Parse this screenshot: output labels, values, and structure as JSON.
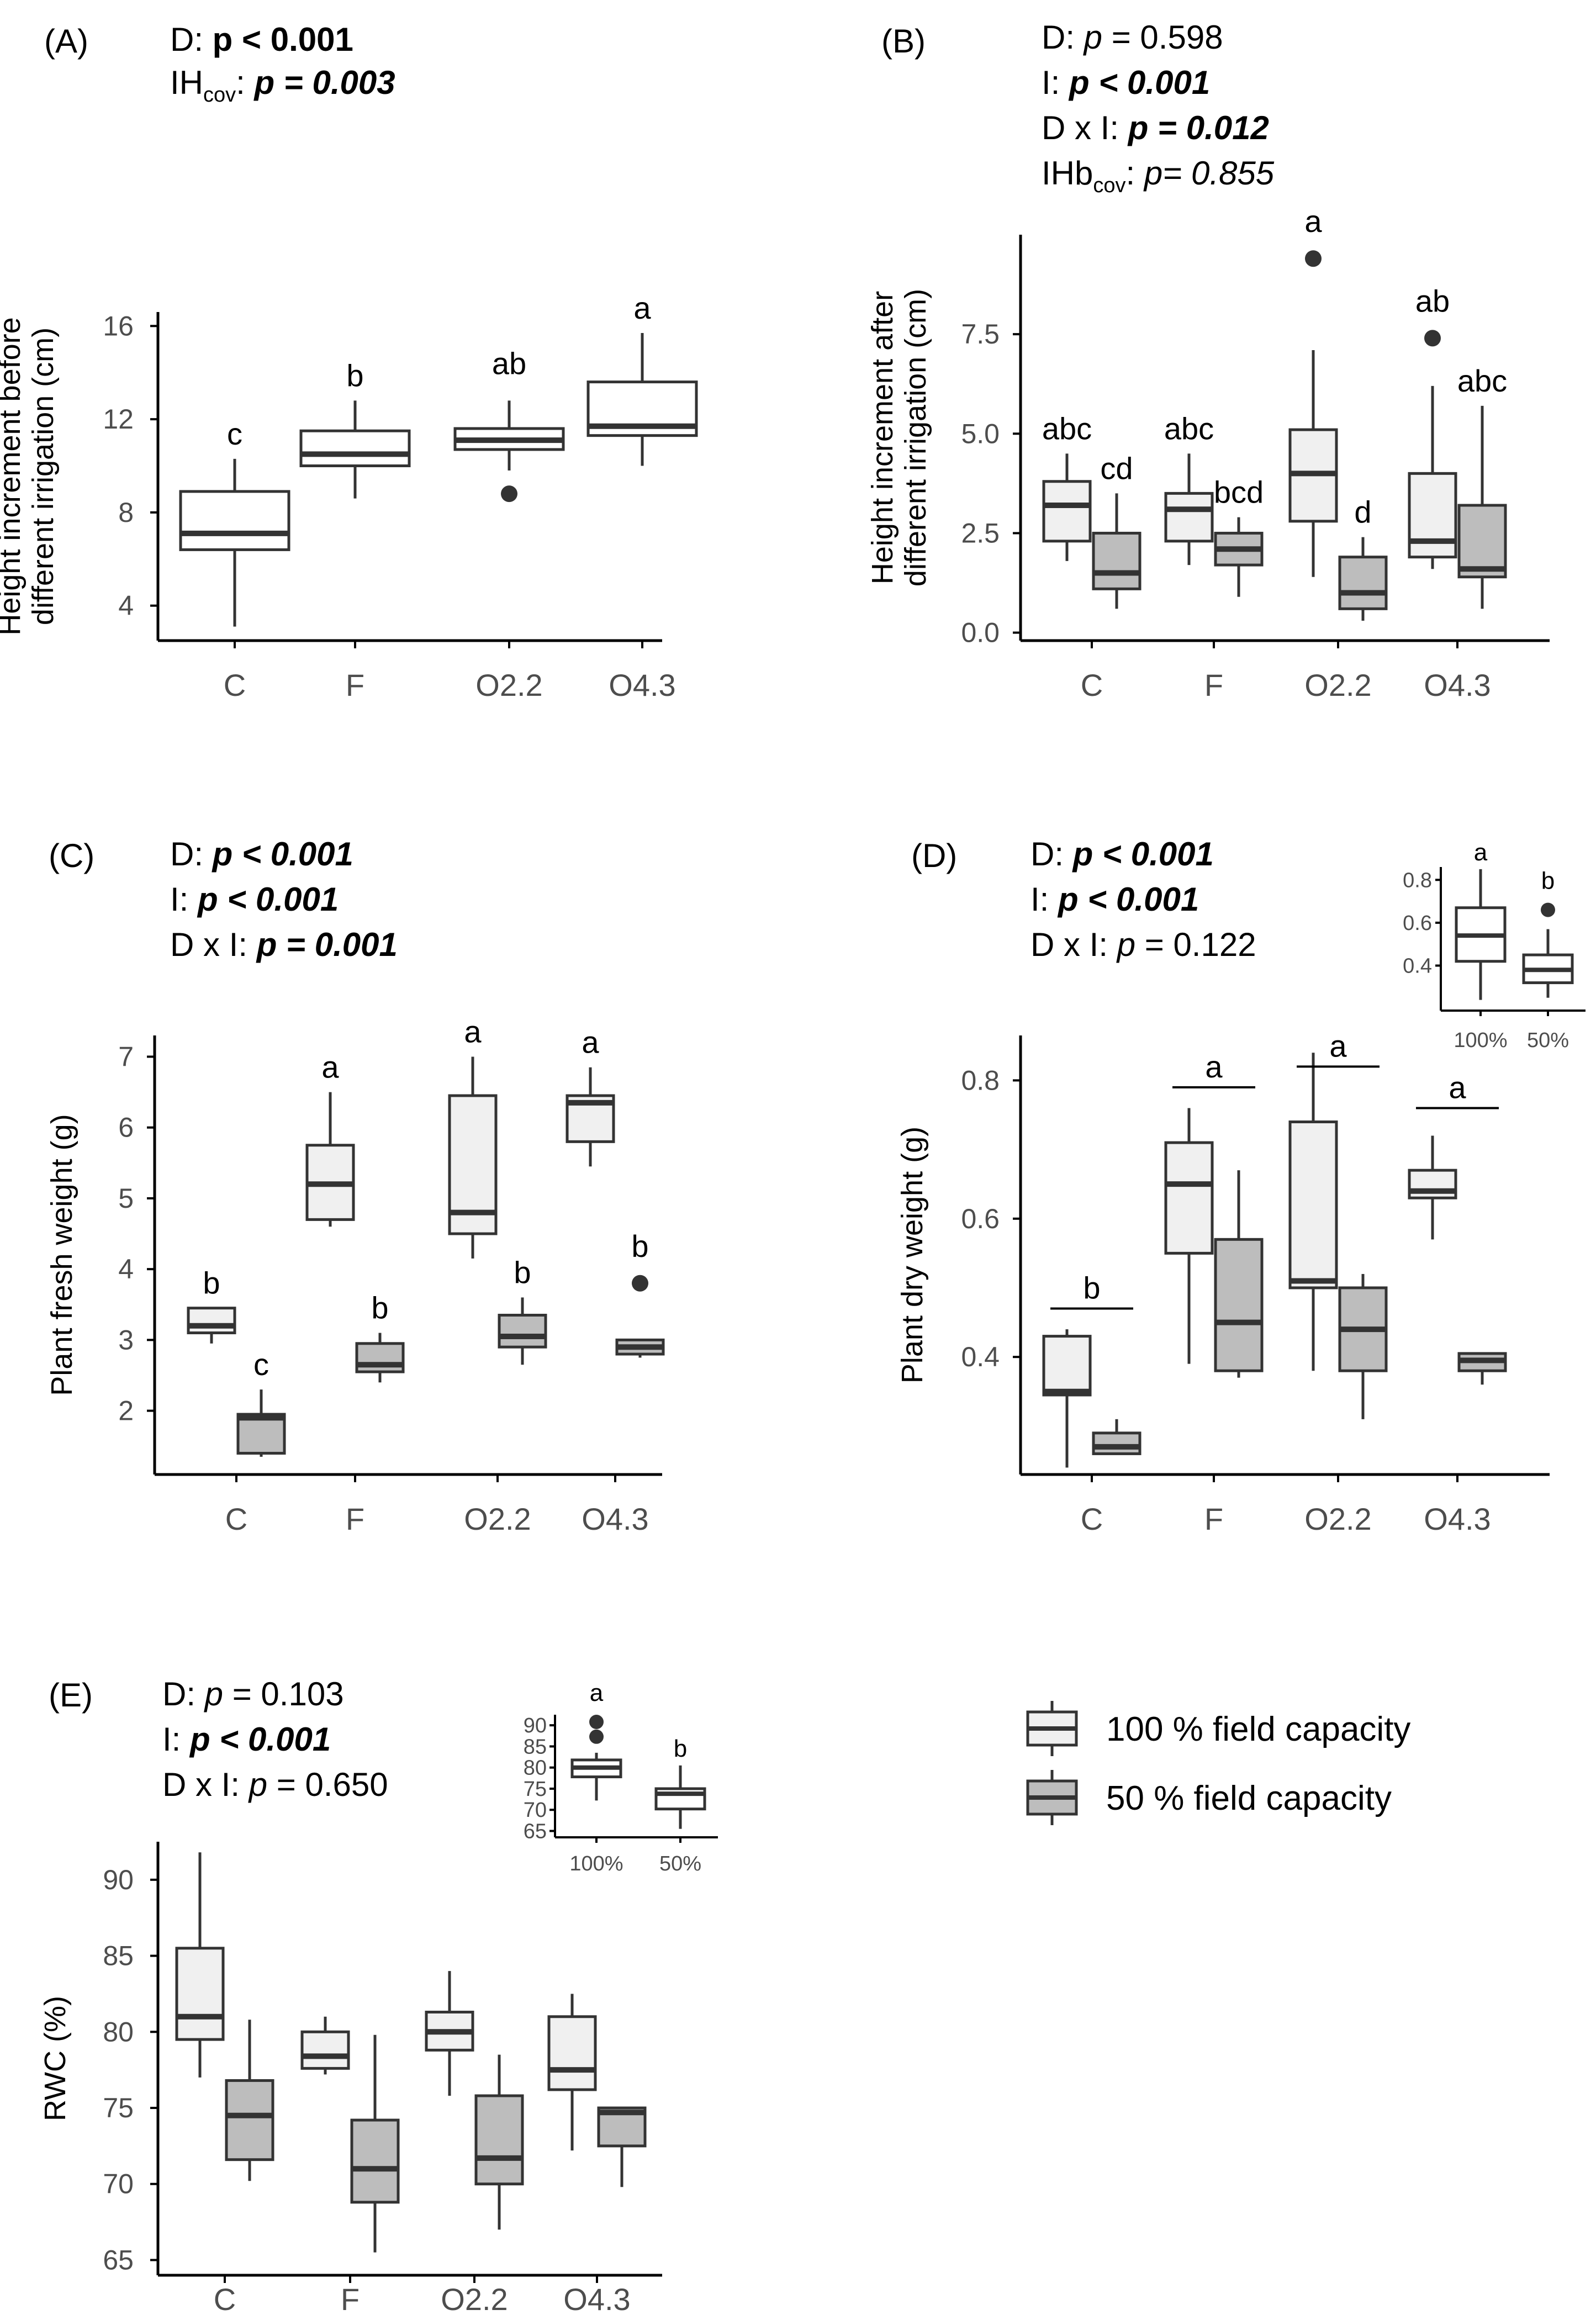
{
  "colors": {
    "fc100": "#f0f0f0",
    "fc50": "#bdbdbd",
    "white": "#ffffff",
    "stroke": "#333333",
    "axis": "#000000"
  },
  "legend": {
    "items": [
      {
        "label": "100 % field capacity",
        "color": "#f0f0f0"
      },
      {
        "label": "50 % field capacity",
        "color": "#bdbdbd"
      }
    ]
  },
  "chart_data": [
    {
      "id": "A",
      "type": "boxplot",
      "panel_label": "(A)",
      "stats": [
        [
          {
            "t": "D: ",
            "b": false,
            "i": false
          },
          {
            "t": "p < 0.001",
            "b": true,
            "i": false
          }
        ],
        [
          {
            "t": "IH",
            "b": false,
            "i": false
          },
          {
            "t": "cov",
            "b": false,
            "i": false,
            "sub": true
          },
          {
            "t": ": ",
            "b": false,
            "i": false
          },
          {
            "t": "p = 0.003",
            "b": true,
            "i": true
          }
        ]
      ],
      "ylabel": [
        "Height increment before",
        "different irrigation (cm)"
      ],
      "ylim": [
        2.5,
        16.6
      ],
      "yticks": [
        {
          "v": 4,
          "label": "4"
        },
        {
          "v": 8,
          "label": "8"
        },
        {
          "v": 12,
          "label": "12"
        },
        {
          "v": 16,
          "label": "16"
        }
      ],
      "categories": [
        "C",
        "F",
        "O2.2",
        "O4.3"
      ],
      "boxes": [
        {
          "cat": 0,
          "fill": "white",
          "min": 3.1,
          "q1": 6.4,
          "median": 7.1,
          "q3": 8.9,
          "max": 10.3,
          "outliers": [],
          "letter": "c"
        },
        {
          "cat": 1,
          "fill": "white",
          "min": 8.6,
          "q1": 10.0,
          "median": 10.5,
          "q3": 11.5,
          "max": 12.8,
          "outliers": [],
          "letter": "b"
        },
        {
          "cat": 2,
          "fill": "white",
          "min": 9.8,
          "q1": 10.7,
          "median": 11.1,
          "q3": 11.6,
          "max": 12.8,
          "outliers": [
            8.8
          ],
          "letter": "ab"
        },
        {
          "cat": 3,
          "fill": "white",
          "min": 10.0,
          "q1": 11.3,
          "median": 11.7,
          "q3": 13.6,
          "max": 15.7,
          "outliers": [],
          "letter": "a"
        }
      ]
    },
    {
      "id": "B",
      "type": "boxplot",
      "panel_label": "(B)",
      "stats": [
        [
          {
            "t": "D: ",
            "b": false,
            "i": false
          },
          {
            "t": "p",
            "b": false,
            "i": true
          },
          {
            "t": " = 0.598",
            "b": false,
            "i": false
          }
        ],
        [
          {
            "t": "I: ",
            "b": false,
            "i": false
          },
          {
            "t": "p < 0.001",
            "b": true,
            "i": true
          }
        ],
        [
          {
            "t": "D x I: ",
            "b": false,
            "i": false
          },
          {
            "t": "p = 0.012",
            "b": true,
            "i": true
          }
        ],
        [
          {
            "t": "IHb",
            "b": false,
            "i": false
          },
          {
            "t": "cov",
            "b": false,
            "i": false,
            "sub": true
          },
          {
            "t": ": ",
            "b": false,
            "i": false
          },
          {
            "t": "p= 0.855",
            "b": false,
            "i": true
          }
        ]
      ],
      "ylabel": [
        "Height increment after",
        "different irrigation (cm)"
      ],
      "ylim": [
        -0.2,
        10.0
      ],
      "yticks": [
        {
          "v": 0,
          "label": "0.0"
        },
        {
          "v": 2.5,
          "label": "2.5"
        },
        {
          "v": 5,
          "label": "5.0"
        },
        {
          "v": 7.5,
          "label": "7.5"
        }
      ],
      "categories": [
        "C",
        "F",
        "O2.2",
        "O4.3"
      ],
      "boxes": [
        {
          "cat": 0,
          "off": -1,
          "fill": "fc100",
          "min": 1.8,
          "q1": 2.3,
          "median": 3.2,
          "q3": 3.8,
          "max": 4.5,
          "outliers": [],
          "letter": "abc"
        },
        {
          "cat": 0,
          "off": 1,
          "fill": "fc50",
          "min": 0.6,
          "q1": 1.1,
          "median": 1.5,
          "q3": 2.5,
          "max": 3.5,
          "outliers": [],
          "letter": "cd"
        },
        {
          "cat": 1,
          "off": -1,
          "fill": "fc100",
          "min": 1.7,
          "q1": 2.3,
          "median": 3.1,
          "q3": 3.5,
          "max": 4.5,
          "outliers": [],
          "letter": "abc"
        },
        {
          "cat": 1,
          "off": 1,
          "fill": "fc50",
          "min": 0.9,
          "q1": 1.7,
          "median": 2.1,
          "q3": 2.5,
          "max": 2.9,
          "outliers": [],
          "letter": "bcd"
        },
        {
          "cat": 2,
          "off": -1,
          "fill": "fc100",
          "min": 1.4,
          "q1": 2.8,
          "median": 4.0,
          "q3": 5.1,
          "max": 7.1,
          "outliers": [
            9.4
          ],
          "letter": "a"
        },
        {
          "cat": 2,
          "off": 1,
          "fill": "fc50",
          "min": 0.3,
          "q1": 0.6,
          "median": 1.0,
          "q3": 1.9,
          "max": 2.4,
          "outliers": [],
          "letter": "d"
        },
        {
          "cat": 3,
          "off": -1,
          "fill": "fc100",
          "min": 1.6,
          "q1": 1.9,
          "median": 2.3,
          "q3": 4.0,
          "max": 6.2,
          "outliers": [
            7.4
          ],
          "letter": "ab"
        },
        {
          "cat": 3,
          "off": 1,
          "fill": "fc50",
          "min": 0.6,
          "q1": 1.4,
          "median": 1.6,
          "q3": 3.2,
          "max": 5.7,
          "outliers": [],
          "letter": "abc"
        }
      ]
    },
    {
      "id": "C",
      "type": "boxplot",
      "panel_label": "(C)",
      "stats": [
        [
          {
            "t": "D: ",
            "b": false,
            "i": false
          },
          {
            "t": "p < 0.001",
            "b": true,
            "i": true
          }
        ],
        [
          {
            "t": "I: ",
            "b": false,
            "i": false
          },
          {
            "t": "p < 0.001",
            "b": true,
            "i": true
          }
        ],
        [
          {
            "t": "D x I: ",
            "b": false,
            "i": false
          },
          {
            "t": "p = 0.001",
            "b": true,
            "i": true
          }
        ]
      ],
      "ylabel": [
        "Plant fresh weight (g)"
      ],
      "ylim": [
        1.1,
        7.3
      ],
      "yticks": [
        {
          "v": 2,
          "label": "2"
        },
        {
          "v": 3,
          "label": "3"
        },
        {
          "v": 4,
          "label": "4"
        },
        {
          "v": 5,
          "label": "5"
        },
        {
          "v": 6,
          "label": "6"
        },
        {
          "v": 7,
          "label": "7"
        }
      ],
      "categories": [
        "C",
        "F",
        "O2.2",
        "O4.3"
      ],
      "boxes": [
        {
          "cat": 0,
          "off": -1,
          "fill": "fc100",
          "min": 2.95,
          "q1": 3.1,
          "median": 3.2,
          "q3": 3.45,
          "max": 3.45,
          "outliers": [],
          "letter": "b"
        },
        {
          "cat": 0,
          "off": 1,
          "fill": "fc50",
          "min": 1.35,
          "q1": 1.4,
          "median": 1.9,
          "q3": 1.95,
          "max": 2.3,
          "outliers": [],
          "letter": "c"
        },
        {
          "cat": 1,
          "off": -1,
          "fill": "fc100",
          "min": 4.6,
          "q1": 4.7,
          "median": 5.2,
          "q3": 5.75,
          "max": 6.5,
          "outliers": [],
          "letter": "a"
        },
        {
          "cat": 1,
          "off": 1,
          "fill": "fc50",
          "min": 2.4,
          "q1": 2.55,
          "median": 2.65,
          "q3": 2.95,
          "max": 3.1,
          "outliers": [],
          "letter": "b"
        },
        {
          "cat": 2,
          "off": -1,
          "fill": "fc100",
          "min": 4.15,
          "q1": 4.5,
          "median": 4.8,
          "q3": 6.45,
          "max": 7.0,
          "outliers": [],
          "letter": "a"
        },
        {
          "cat": 2,
          "off": 1,
          "fill": "fc50",
          "min": 2.65,
          "q1": 2.9,
          "median": 3.05,
          "q3": 3.35,
          "max": 3.6,
          "outliers": [],
          "letter": "b"
        },
        {
          "cat": 3,
          "off": -1,
          "fill": "fc100",
          "min": 5.45,
          "q1": 5.8,
          "median": 6.35,
          "q3": 6.45,
          "max": 6.85,
          "outliers": [],
          "letter": "a"
        },
        {
          "cat": 3,
          "off": 1,
          "fill": "fc50",
          "min": 2.75,
          "q1": 2.8,
          "median": 2.9,
          "q3": 3.0,
          "max": 3.0,
          "outliers": [
            3.8
          ],
          "letter": "b"
        }
      ]
    },
    {
      "id": "D",
      "type": "boxplot",
      "panel_label": "(D)",
      "stats": [
        [
          {
            "t": "D: ",
            "b": false,
            "i": false
          },
          {
            "t": "p < 0.001",
            "b": true,
            "i": true
          }
        ],
        [
          {
            "t": "I: ",
            "b": false,
            "i": false
          },
          {
            "t": "p < 0.001",
            "b": true,
            "i": true
          }
        ],
        [
          {
            "t": "D x I: ",
            "b": false,
            "i": false
          },
          {
            "t": "p",
            "b": false,
            "i": true
          },
          {
            "t": " = 0.122",
            "b": false,
            "i": false
          }
        ]
      ],
      "ylabel": [
        "Plant dry weight (g)"
      ],
      "ylim": [
        0.23,
        0.865
      ],
      "yticks": [
        {
          "v": 0.4,
          "label": "0.4"
        },
        {
          "v": 0.6,
          "label": "0.6"
        },
        {
          "v": 0.8,
          "label": "0.8"
        }
      ],
      "categories": [
        "C",
        "F",
        "O2.2",
        "O4.3"
      ],
      "group_letters": [
        {
          "cat": 0,
          "y": 0.47,
          "letter": "b"
        },
        {
          "cat": 1,
          "y": 0.79,
          "letter": "a"
        },
        {
          "cat": 2,
          "y": 0.82,
          "letter": "a"
        },
        {
          "cat": 3,
          "y": 0.76,
          "letter": "a"
        }
      ],
      "boxes": [
        {
          "cat": 0,
          "off": -1,
          "fill": "fc100",
          "min": 0.24,
          "q1": 0.345,
          "median": 0.35,
          "q3": 0.43,
          "max": 0.44,
          "outliers": []
        },
        {
          "cat": 0,
          "off": 1,
          "fill": "fc50",
          "min": 0.26,
          "q1": 0.26,
          "median": 0.27,
          "q3": 0.29,
          "max": 0.31,
          "outliers": []
        },
        {
          "cat": 1,
          "off": -1,
          "fill": "fc100",
          "min": 0.39,
          "q1": 0.55,
          "median": 0.65,
          "q3": 0.71,
          "max": 0.76,
          "outliers": []
        },
        {
          "cat": 1,
          "off": 1,
          "fill": "fc50",
          "min": 0.37,
          "q1": 0.38,
          "median": 0.45,
          "q3": 0.57,
          "max": 0.67,
          "outliers": []
        },
        {
          "cat": 2,
          "off": -1,
          "fill": "fc100",
          "min": 0.38,
          "q1": 0.5,
          "median": 0.51,
          "q3": 0.74,
          "max": 0.84,
          "outliers": []
        },
        {
          "cat": 2,
          "off": 1,
          "fill": "fc50",
          "min": 0.31,
          "q1": 0.38,
          "median": 0.44,
          "q3": 0.5,
          "max": 0.52,
          "outliers": []
        },
        {
          "cat": 3,
          "off": -1,
          "fill": "fc100",
          "min": 0.57,
          "q1": 0.63,
          "median": 0.64,
          "q3": 0.67,
          "max": 0.72,
          "outliers": []
        },
        {
          "cat": 3,
          "off": 1,
          "fill": "fc50",
          "min": 0.36,
          "q1": 0.38,
          "median": 0.395,
          "q3": 0.405,
          "max": 0.405,
          "outliers": []
        }
      ],
      "inset": {
        "ylim": [
          0.19,
          0.86
        ],
        "yticks": [
          {
            "v": 0.4,
            "label": "0.4"
          },
          {
            "v": 0.6,
            "label": "0.6"
          },
          {
            "v": 0.8,
            "label": "0.8"
          }
        ],
        "categories": [
          "100%",
          "50%"
        ],
        "boxes": [
          {
            "cat": 0,
            "fill": "white",
            "min": 0.24,
            "q1": 0.42,
            "median": 0.54,
            "q3": 0.67,
            "max": 0.85,
            "outliers": [],
            "letter": "a"
          },
          {
            "cat": 1,
            "fill": "white",
            "min": 0.25,
            "q1": 0.32,
            "median": 0.38,
            "q3": 0.45,
            "max": 0.57,
            "outliers": [
              0.66
            ],
            "letter": "b"
          }
        ]
      }
    },
    {
      "id": "E",
      "type": "boxplot",
      "panel_label": "(E)",
      "stats": [
        [
          {
            "t": "D: ",
            "b": false,
            "i": false
          },
          {
            "t": "p",
            "b": false,
            "i": true
          },
          {
            "t": " = 0.103",
            "b": false,
            "i": false
          }
        ],
        [
          {
            "t": "I: ",
            "b": false,
            "i": false
          },
          {
            "t": "p < 0.001",
            "b": true,
            "i": true
          }
        ],
        [
          {
            "t": "D x I: ",
            "b": false,
            "i": false
          },
          {
            "t": "p",
            "b": false,
            "i": true
          },
          {
            "t": " = 0.650",
            "b": false,
            "i": false
          }
        ]
      ],
      "ylabel": [
        "RWC (%)"
      ],
      "ylim": [
        64.0,
        92.5
      ],
      "yticks": [
        {
          "v": 65,
          "label": "65"
        },
        {
          "v": 70,
          "label": "70"
        },
        {
          "v": 75,
          "label": "75"
        },
        {
          "v": 80,
          "label": "80"
        },
        {
          "v": 85,
          "label": "85"
        },
        {
          "v": 90,
          "label": "90"
        }
      ],
      "categories": [
        "C",
        "F",
        "O2.2",
        "O4.3"
      ],
      "boxes": [
        {
          "cat": 0,
          "off": -1,
          "fill": "fc100",
          "min": 77.0,
          "q1": 79.5,
          "median": 81.0,
          "q3": 85.5,
          "max": 91.8,
          "outliers": []
        },
        {
          "cat": 0,
          "off": 1,
          "fill": "fc50",
          "min": 70.2,
          "q1": 71.6,
          "median": 74.5,
          "q3": 76.8,
          "max": 80.8,
          "outliers": []
        },
        {
          "cat": 1,
          "off": -1,
          "fill": "fc100",
          "min": 77.2,
          "q1": 77.6,
          "median": 78.4,
          "q3": 80.0,
          "max": 81.0,
          "outliers": []
        },
        {
          "cat": 1,
          "off": 1,
          "fill": "fc50",
          "min": 65.5,
          "q1": 68.8,
          "median": 71.0,
          "q3": 74.2,
          "max": 79.8,
          "outliers": []
        },
        {
          "cat": 2,
          "off": -1,
          "fill": "fc100",
          "min": 75.8,
          "q1": 78.8,
          "median": 80.0,
          "q3": 81.3,
          "max": 84.0,
          "outliers": []
        },
        {
          "cat": 2,
          "off": 1,
          "fill": "fc50",
          "min": 67.0,
          "q1": 70.0,
          "median": 71.7,
          "q3": 75.8,
          "max": 78.5,
          "outliers": []
        },
        {
          "cat": 3,
          "off": -1,
          "fill": "fc100",
          "min": 72.2,
          "q1": 76.2,
          "median": 77.5,
          "q3": 81.0,
          "max": 82.5,
          "outliers": []
        },
        {
          "cat": 3,
          "off": 1,
          "fill": "fc50",
          "min": 69.8,
          "q1": 72.5,
          "median": 74.7,
          "q3": 75.0,
          "max": 75.0,
          "outliers": []
        }
      ],
      "inset": {
        "ylim": [
          63.5,
          92.5
        ],
        "yticks": [
          {
            "v": 65,
            "label": "65"
          },
          {
            "v": 70,
            "label": "70"
          },
          {
            "v": 75,
            "label": "75"
          },
          {
            "v": 80,
            "label": "80"
          },
          {
            "v": 85,
            "label": "85"
          },
          {
            "v": 90,
            "label": "90"
          }
        ],
        "categories": [
          "100%",
          "50%"
        ],
        "boxes": [
          {
            "cat": 0,
            "fill": "white",
            "min": 72.2,
            "q1": 77.8,
            "median": 80.0,
            "q3": 81.8,
            "max": 83.5,
            "outliers": [
              87.3,
              90.8
            ],
            "letter": "a"
          },
          {
            "cat": 1,
            "fill": "white",
            "min": 65.5,
            "q1": 70.2,
            "median": 73.8,
            "q3": 75.0,
            "max": 80.5,
            "outliers": [],
            "letter": "b"
          }
        ]
      }
    }
  ]
}
